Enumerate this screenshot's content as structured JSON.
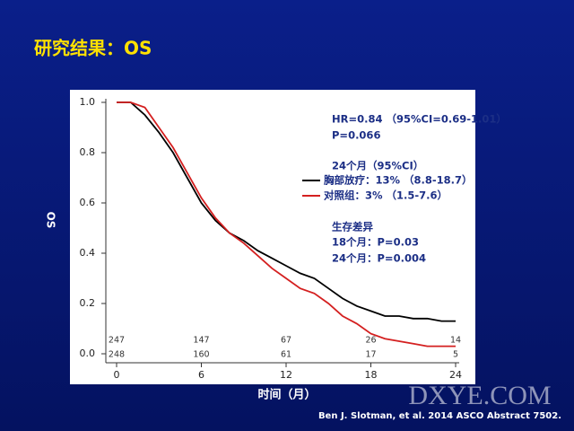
{
  "slide_title": "研究结果：OS",
  "citation": "Ben J. Slotman, et al. 2014 ASCO Abstract 7502.",
  "watermark": "DXYE.COM",
  "chart_data": {
    "type": "line",
    "ylabel": "OS",
    "xlabel": "时间（月）",
    "x": [
      0,
      1,
      2,
      3,
      4,
      5,
      6,
      7,
      8,
      9,
      10,
      11,
      12,
      13,
      14,
      15,
      16,
      17,
      18,
      19,
      20,
      21,
      22,
      23,
      24
    ],
    "series": [
      {
        "name": "胸部放疗：13% （8.8-18.7）",
        "color": "#000000",
        "values": [
          1.0,
          1.0,
          0.95,
          0.88,
          0.8,
          0.7,
          0.6,
          0.53,
          0.48,
          0.45,
          0.41,
          0.38,
          0.35,
          0.32,
          0.3,
          0.26,
          0.22,
          0.19,
          0.17,
          0.15,
          0.15,
          0.14,
          0.14,
          0.13,
          0.13
        ]
      },
      {
        "name": "对照组：3% （1.5-7.6）",
        "color": "#d42020",
        "values": [
          1.0,
          1.0,
          0.98,
          0.9,
          0.82,
          0.72,
          0.62,
          0.54,
          0.48,
          0.44,
          0.39,
          0.34,
          0.3,
          0.26,
          0.24,
          0.2,
          0.15,
          0.12,
          0.08,
          0.06,
          0.05,
          0.04,
          0.03,
          0.03,
          0.03
        ]
      }
    ],
    "xlim": [
      0,
      24
    ],
    "xticks": [
      0,
      6,
      12,
      18,
      24
    ],
    "ylim": [
      0,
      1
    ],
    "yticks": [
      {
        "value": 0,
        "label": "0.0"
      },
      0.2,
      0.4,
      0.6,
      0.8,
      {
        "value": 1,
        "label": "1.0"
      }
    ],
    "legend_title": "24个月（95%CI）",
    "annotations": [
      "HR=0.84 （95%CI=0.69-1.01）",
      "P=0.066",
      "生存差异",
      "18个月：P=0.03",
      "24个月：P=0.004"
    ],
    "risk_table": {
      "x": [
        0,
        6,
        12,
        18,
        24
      ],
      "rows": [
        [
          247,
          147,
          67,
          26,
          14
        ],
        [
          248,
          160,
          61,
          17,
          5
        ]
      ]
    }
  }
}
